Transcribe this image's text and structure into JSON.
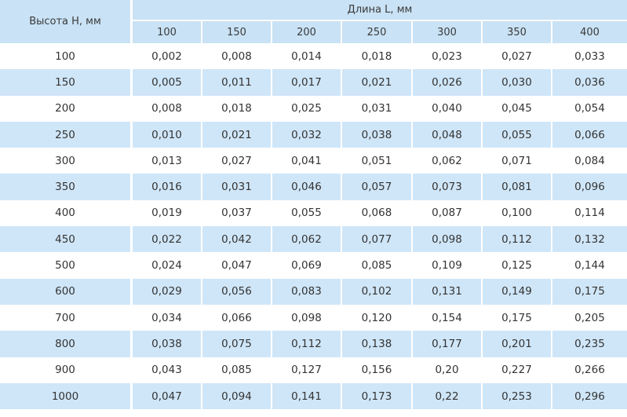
{
  "table": {
    "row_header_label": "Высота H, мм",
    "col_group_label": "Длина L, мм",
    "columns": [
      "100",
      "150",
      "200",
      "250",
      "300",
      "350",
      "400"
    ],
    "rows": [
      {
        "h": "100",
        "values": [
          "0,002",
          "0,008",
          "0,014",
          "0,018",
          "0,023",
          "0,027",
          "0,033"
        ]
      },
      {
        "h": "150",
        "values": [
          "0,005",
          "0,011",
          "0,017",
          "0,021",
          "0,026",
          "0,030",
          "0,036"
        ]
      },
      {
        "h": "200",
        "values": [
          "0,008",
          "0,018",
          "0,025",
          "0,031",
          "0,040",
          "0,045",
          "0,054"
        ]
      },
      {
        "h": "250",
        "values": [
          "0,010",
          "0,021",
          "0,032",
          "0,038",
          "0,048",
          "0,055",
          "0,066"
        ]
      },
      {
        "h": "300",
        "values": [
          "0,013",
          "0,027",
          "0,041",
          "0,051",
          "0,062",
          "0,071",
          "0,084"
        ]
      },
      {
        "h": "350",
        "values": [
          "0,016",
          "0,031",
          "0,046",
          "0,057",
          "0,073",
          "0,081",
          "0,096"
        ]
      },
      {
        "h": "400",
        "values": [
          "0,019",
          "0,037",
          "0,055",
          "0,068",
          "0,087",
          "0,100",
          "0,114"
        ]
      },
      {
        "h": "450",
        "values": [
          "0,022",
          "0,042",
          "0,062",
          "0,077",
          "0,098",
          "0,112",
          "0,132"
        ]
      },
      {
        "h": "500",
        "values": [
          "0,024",
          "0,047",
          "0,069",
          "0,085",
          "0,109",
          "0,125",
          "0,144"
        ]
      },
      {
        "h": "600",
        "values": [
          "0,029",
          "0,056",
          "0,083",
          "0,102",
          "0,131",
          "0,149",
          "0,175"
        ]
      },
      {
        "h": "700",
        "values": [
          "0,034",
          "0,066",
          "0,098",
          "0,120",
          "0,154",
          "0,175",
          "0,205"
        ]
      },
      {
        "h": "800",
        "values": [
          "0,038",
          "0,075",
          "0,112",
          "0,138",
          "0,177",
          "0,201",
          "0,235"
        ]
      },
      {
        "h": "900",
        "values": [
          "0,043",
          "0,085",
          "0,127",
          "0,156",
          "0,20",
          "0,227",
          "0,266"
        ]
      },
      {
        "h": "1000",
        "values": [
          "0,047",
          "0,094",
          "0,141",
          "0,173",
          "0,22",
          "0,253",
          "0,296"
        ]
      }
    ]
  },
  "colors": {
    "header_bg": "#c9e2f5",
    "stripe_bg": "#cfe6f8",
    "text": "#333333"
  }
}
